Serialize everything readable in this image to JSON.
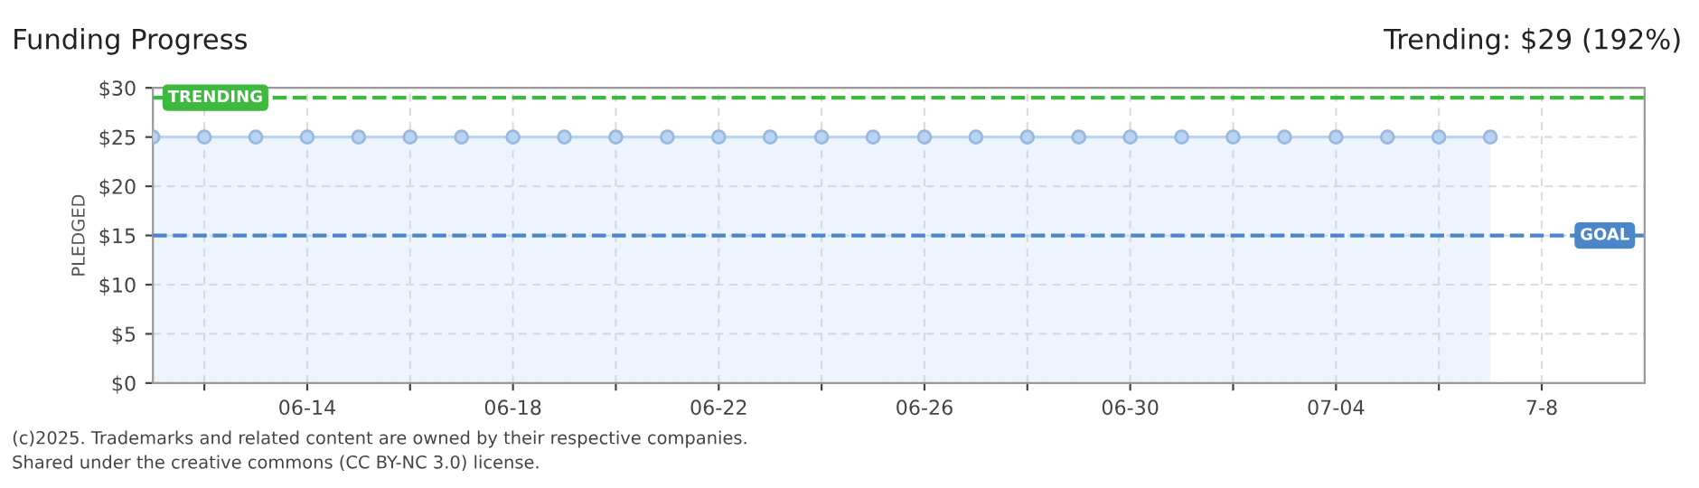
{
  "chart_data": {
    "type": "area",
    "title": "Funding Progress",
    "ylabel": "PLEDGED",
    "x": [
      "2025-06-11",
      "2025-06-12",
      "2025-06-13",
      "2025-06-14",
      "2025-06-15",
      "2025-06-16",
      "2025-06-17",
      "2025-06-18",
      "2025-06-19",
      "2025-06-20",
      "2025-06-21",
      "2025-06-22",
      "2025-06-23",
      "2025-06-24",
      "2025-06-25",
      "2025-06-26",
      "2025-06-27",
      "2025-06-28",
      "2025-06-29",
      "2025-06-30",
      "2025-07-01",
      "2025-07-02",
      "2025-07-03",
      "2025-07-04",
      "2025-07-05",
      "2025-07-06",
      "2025-07-07"
    ],
    "series": [
      {
        "color": "#b9d3f0",
        "values": [
          25,
          25,
          25,
          25,
          25,
          25,
          25,
          25,
          25,
          25,
          25,
          25,
          25,
          25,
          25,
          25,
          25,
          25,
          25,
          25,
          25,
          25,
          25,
          25,
          25,
          25,
          25
        ]
      }
    ],
    "xlim": [
      "2025-06-11",
      "2025-07-10"
    ],
    "xticks": [
      {
        "value": "2025-06-12",
        "label": null
      },
      {
        "value": "2025-06-14",
        "label": "06-14"
      },
      {
        "value": "2025-06-16",
        "label": null
      },
      {
        "value": "2025-06-18",
        "label": "06-18"
      },
      {
        "value": "2025-06-20",
        "label": null
      },
      {
        "value": "2025-06-22",
        "label": "06-22"
      },
      {
        "value": "2025-06-24",
        "label": null
      },
      {
        "value": "2025-06-26",
        "label": "06-26"
      },
      {
        "value": "2025-06-28",
        "label": null
      },
      {
        "value": "2025-06-30",
        "label": "06-30"
      },
      {
        "value": "2025-07-02",
        "label": null
      },
      {
        "value": "2025-07-04",
        "label": "07-04"
      },
      {
        "value": "2025-07-06",
        "label": null
      },
      {
        "value": "2025-07-08",
        "label": "7-8"
      }
    ],
    "ylim": [
      0,
      30
    ],
    "yticks": [
      {
        "value": 0,
        "label": "$0"
      },
      {
        "value": 5,
        "label": "$5"
      },
      {
        "value": 10,
        "label": "$10"
      },
      {
        "value": 15,
        "label": "$15"
      },
      {
        "value": 20,
        "label": "$20"
      },
      {
        "value": 25,
        "label": "$25"
      },
      {
        "value": 30,
        "label": "$30"
      }
    ],
    "ref_lines": [
      {
        "axis": "y",
        "value": 29,
        "label": "TRENDING",
        "color": "#3db93d",
        "line_style": "dashed"
      },
      {
        "axis": "y",
        "value": 15,
        "label": "GOAL",
        "color": "#4a86c8",
        "line_style": "dashed"
      }
    ],
    "annotations": [
      "Trending: $29 (192%)",
      "(c)2025. Trademarks and related content are owned by their respective companies.",
      "Shared under the creative commons (CC BY-NC 3.0) license."
    ],
    "grid": true,
    "marker": "circle",
    "line_style": "solid"
  }
}
